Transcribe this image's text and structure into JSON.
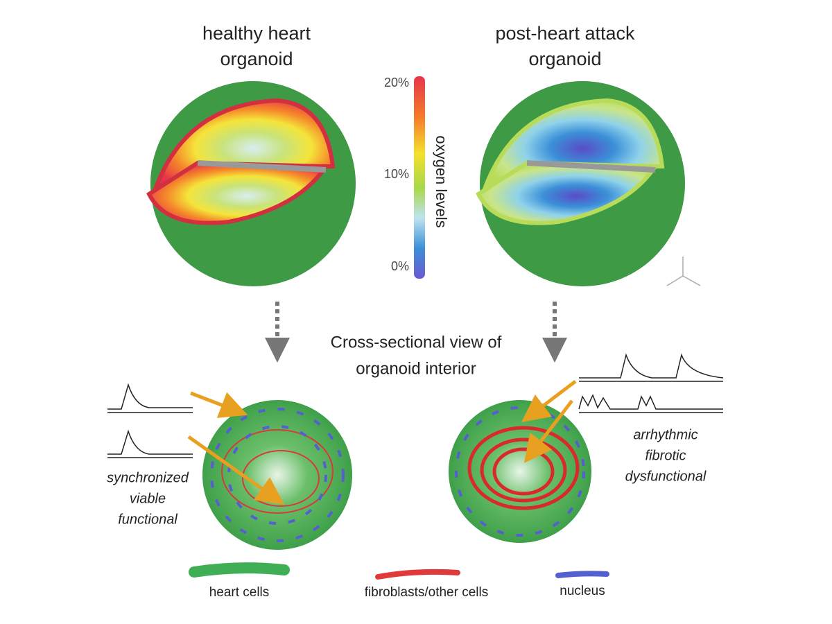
{
  "left_title": [
    "healthy heart",
    "organoid"
  ],
  "right_title": [
    "post-heart attack",
    "organoid"
  ],
  "colorbar": {
    "title": "oxygen levels",
    "ticks": [
      "20%",
      "10%",
      "0%"
    ]
  },
  "center_caption": [
    "Cross-sectional view of",
    "organoid interior"
  ],
  "left_description": [
    "synchronized",
    "viable",
    "functional"
  ],
  "right_description": [
    "arrhythmic",
    "fibrotic",
    "dysfunctional"
  ],
  "legend": [
    "heart cells",
    "fibroblasts/other cells",
    "nucleus"
  ]
}
